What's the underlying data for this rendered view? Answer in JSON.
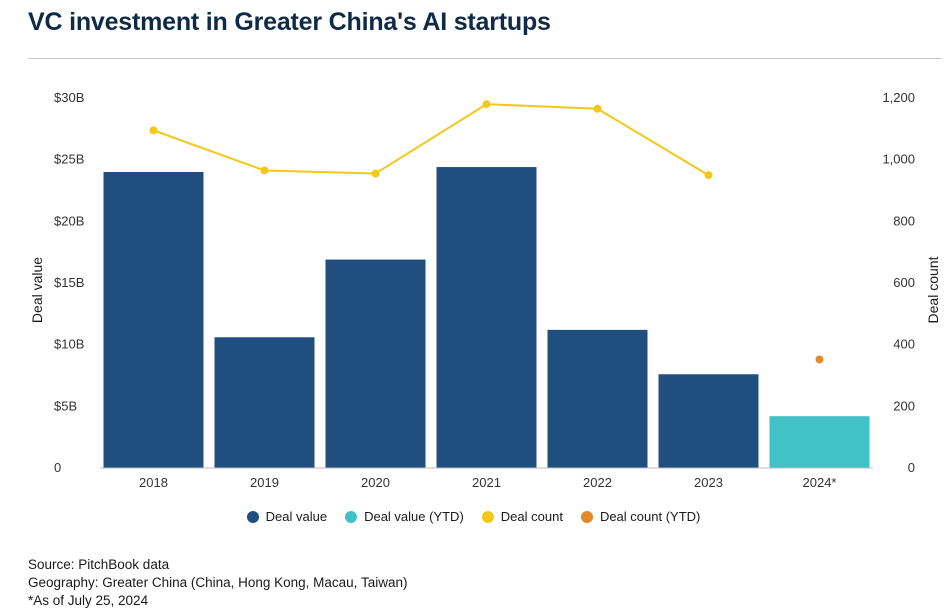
{
  "title": "VC investment in Greater China's AI startups",
  "chart_data": {
    "type": "bar",
    "categories": [
      "2018",
      "2019",
      "2020",
      "2021",
      "2022",
      "2023",
      "2024*"
    ],
    "series": [
      {
        "name": "Deal value",
        "type": "bar",
        "axis": "left",
        "color": "#1f4e7f",
        "values": [
          24.0,
          10.6,
          16.9,
          24.4,
          11.2,
          7.6,
          null
        ]
      },
      {
        "name": "Deal value (YTD)",
        "type": "bar",
        "axis": "left",
        "color": "#41c2c6",
        "values": [
          null,
          null,
          null,
          null,
          null,
          null,
          4.2
        ]
      },
      {
        "name": "Deal count",
        "type": "line",
        "axis": "right",
        "color": "#f2c81b",
        "values": [
          1095,
          965,
          955,
          1180,
          1165,
          950,
          null
        ]
      },
      {
        "name": "Deal count (YTD)",
        "type": "scatter",
        "axis": "right",
        "color": "#e08a2c",
        "values": [
          null,
          null,
          null,
          null,
          null,
          null,
          352
        ]
      }
    ],
    "ylabel": "Deal value",
    "y2label": "Deal count",
    "ylim": [
      0,
      30
    ],
    "y2lim": [
      0,
      1200
    ],
    "y_ticks": [
      "0",
      "$5B",
      "$10B",
      "$15B",
      "$20B",
      "$25B",
      "$30B"
    ],
    "y2_ticks": [
      "0",
      "200",
      "400",
      "600",
      "800",
      "1,000",
      "1,200"
    ],
    "grid": false,
    "legend_position": "bottom"
  },
  "notes": [
    "Source: PitchBook data",
    "Geography: Greater China (China, Hong Kong, Macau, Taiwan)",
    "*As of July 25, 2024"
  ]
}
